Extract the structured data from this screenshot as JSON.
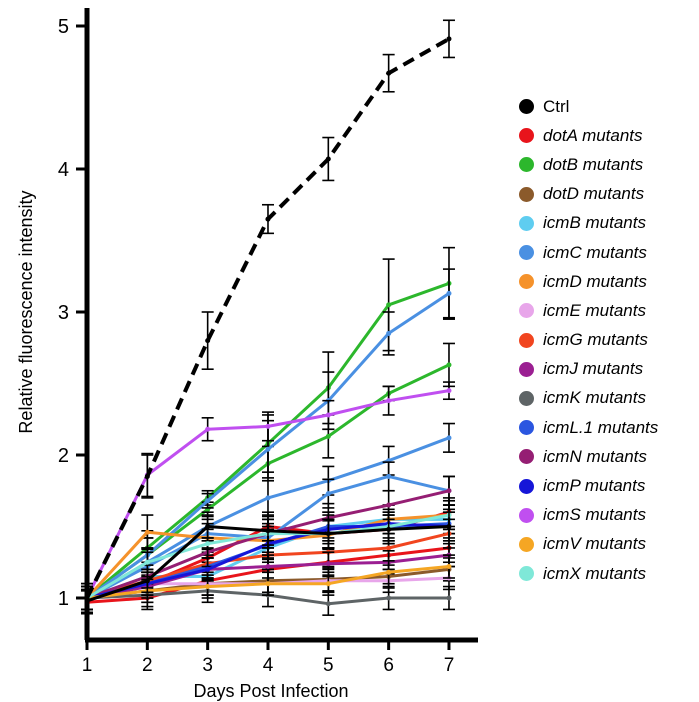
{
  "chart_data": {
    "type": "line",
    "xlabel": "Days Post Infection",
    "ylabel": "Relative fluorescence intensity",
    "x": [
      1,
      2,
      3,
      4,
      5,
      6,
      7
    ],
    "x_ticks": [
      "1",
      "2",
      "3",
      "4",
      "5",
      "6",
      "7"
    ],
    "y_ticks": [
      "1",
      "2",
      "3",
      "4",
      "5"
    ],
    "xlim": [
      1,
      7
    ],
    "ylim": [
      0.65,
      5.3
    ],
    "grid": false,
    "legend_position": "right",
    "series": [
      {
        "name": "Ctrl",
        "color": "#000000",
        "dashed": true,
        "values": [
          1.0,
          1.85,
          2.8,
          3.65,
          4.07,
          4.67,
          4.91
        ],
        "errors": [
          0.1,
          0.15,
          0.2,
          0.1,
          0.15,
          0.13,
          0.13
        ]
      },
      {
        "color": "#000000",
        "values": [
          0.98,
          1.12,
          1.5,
          1.47,
          1.45,
          1.48,
          1.5
        ],
        "errors": [
          0.08,
          0.08,
          0.08,
          0.1,
          0.1,
          0.1,
          0.1
        ]
      },
      {
        "name": "dotA mutants",
        "color": "#e8141b",
        "values": [
          1.0,
          1.1,
          1.28,
          1.5,
          1.45,
          1.48,
          1.6
        ],
        "errors": [
          0.08,
          0.1,
          0.12,
          0.1,
          0.1,
          0.1,
          0.1
        ]
      },
      {
        "color": "#e8141b",
        "values": [
          0.97,
          1.0,
          1.12,
          1.2,
          1.25,
          1.3,
          1.35
        ],
        "errors": [
          0.08,
          0.08,
          0.1,
          0.1,
          0.1,
          0.1,
          0.1
        ]
      },
      {
        "name": "dotB  mutants",
        "color": "#2cb72c",
        "values": [
          1.0,
          1.35,
          1.7,
          2.08,
          2.47,
          3.05,
          3.2
        ],
        "errors": [
          0.1,
          0.12,
          0.05,
          0.2,
          0.25,
          0.32,
          0.25
        ]
      },
      {
        "color": "#2cb72c",
        "values": [
          1.0,
          1.3,
          1.62,
          1.94,
          2.13,
          2.43,
          2.63
        ],
        "errors": [
          0.1,
          0.12,
          0.05,
          0.12,
          0.15,
          0.05,
          0.15
        ]
      },
      {
        "name": "dotD mutants",
        "color": "#8b5a2b",
        "values": [
          1.0,
          1.05,
          1.1,
          1.12,
          1.13,
          1.15,
          1.2
        ],
        "errors": [
          0.08,
          0.08,
          0.08,
          0.08,
          0.08,
          0.08,
          0.08
        ]
      },
      {
        "name": "icmB mutants",
        "color": "#5fcdf0",
        "values": [
          1.0,
          1.15,
          1.15,
          1.35,
          1.5,
          1.55,
          1.55
        ],
        "errors": [
          0.08,
          0.1,
          0.1,
          0.1,
          0.1,
          0.1,
          0.1
        ]
      },
      {
        "name": "icmC mutants",
        "color": "#4a90e2",
        "values": [
          1.0,
          1.3,
          1.68,
          2.04,
          2.38,
          2.85,
          3.13
        ],
        "errors": [
          0.1,
          0.12,
          0.05,
          0.2,
          0.2,
          0.15,
          0.17
        ]
      },
      {
        "color": "#4a90e2",
        "values": [
          1.0,
          1.25,
          1.5,
          1.7,
          1.82,
          1.96,
          2.12
        ],
        "errors": [
          0.08,
          0.1,
          0.1,
          0.12,
          0.1,
          0.1,
          0.1
        ]
      },
      {
        "color": "#4a90e2",
        "values": [
          1.0,
          1.22,
          1.45,
          1.42,
          1.73,
          1.85,
          1.75
        ],
        "errors": [
          0.08,
          0.1,
          0.1,
          0.1,
          0.1,
          0.1,
          0.1
        ]
      },
      {
        "name": "icmD mutants",
        "color": "#f5922b",
        "values": [
          1.0,
          1.46,
          1.42,
          1.4,
          1.44,
          1.55,
          1.58
        ],
        "errors": [
          0.08,
          0.12,
          0.1,
          0.1,
          0.1,
          0.1,
          0.1
        ]
      },
      {
        "name": "icmE mutants",
        "color": "#e8a6ea",
        "values": [
          1.0,
          1.1,
          1.1,
          1.1,
          1.12,
          1.12,
          1.14
        ],
        "errors": [
          0.08,
          0.08,
          0.08,
          0.08,
          0.08,
          0.08,
          0.08
        ]
      },
      {
        "name": "icmG mutants",
        "color": "#f1451f",
        "values": [
          1.0,
          1.12,
          1.24,
          1.3,
          1.32,
          1.35,
          1.45
        ],
        "errors": [
          0.08,
          0.08,
          0.1,
          0.1,
          0.1,
          0.1,
          0.1
        ]
      },
      {
        "name": "icmJ mutants",
        "color": "#9b1f92",
        "values": [
          1.0,
          1.08,
          1.2,
          1.22,
          1.24,
          1.25,
          1.3
        ],
        "errors": [
          0.08,
          0.08,
          0.08,
          0.08,
          0.08,
          0.08,
          0.08
        ]
      },
      {
        "name": "icmK mutants",
        "color": "#5e6466",
        "values": [
          1.0,
          1.02,
          1.05,
          1.02,
          0.96,
          1.0,
          1.0
        ],
        "errors": [
          0.08,
          0.08,
          0.08,
          0.08,
          0.08,
          0.08,
          0.08
        ]
      },
      {
        "name": "icmL.1 mutants",
        "color": "#2b56e0",
        "values": [
          1.0,
          1.1,
          1.22,
          1.37,
          1.5,
          1.5,
          1.52
        ],
        "errors": [
          0.08,
          0.08,
          0.08,
          0.1,
          0.1,
          0.1,
          0.1
        ]
      },
      {
        "name": "icmN mutants",
        "color": "#951e73",
        "values": [
          1.0,
          1.15,
          1.32,
          1.45,
          1.56,
          1.65,
          1.75
        ],
        "errors": [
          0.08,
          0.08,
          0.1,
          0.1,
          0.1,
          0.1,
          0.1
        ]
      },
      {
        "name": "icmP mutants",
        "color": "#1616d8",
        "values": [
          1.0,
          1.1,
          1.2,
          1.38,
          1.48,
          1.52,
          1.5
        ],
        "errors": [
          0.08,
          0.08,
          0.08,
          0.1,
          0.1,
          0.1,
          0.1
        ]
      },
      {
        "name": "icmS mutants",
        "color": "#c04ff0",
        "values": [
          1.0,
          1.86,
          2.18,
          2.2,
          2.28,
          2.38,
          2.45
        ],
        "errors": [
          0.08,
          0.15,
          0.08,
          0.1,
          0.1,
          0.1,
          0.06
        ]
      },
      {
        "name": "icmV mutants",
        "color": "#f5a623",
        "values": [
          1.0,
          1.05,
          1.08,
          1.1,
          1.1,
          1.18,
          1.22
        ],
        "errors": [
          0.08,
          0.08,
          0.08,
          0.08,
          0.08,
          0.08,
          0.08
        ]
      },
      {
        "name": "icmX mutants",
        "color": "#7fe8d8",
        "values": [
          1.0,
          1.25,
          1.38,
          1.45,
          1.45,
          1.5,
          1.58
        ],
        "errors": [
          0.08,
          0.1,
          0.1,
          0.1,
          0.1,
          0.1,
          0.1
        ]
      }
    ]
  },
  "legend": [
    {
      "label": "Ctrl",
      "color": "#000000",
      "italic": false
    },
    {
      "label": "dotA mutants",
      "color": "#e8141b",
      "italic": true
    },
    {
      "label": "dotB  mutants",
      "color": "#2cb72c",
      "italic": true
    },
    {
      "label": "dotD mutants",
      "color": "#8b5a2b",
      "italic": true
    },
    {
      "label": "icmB mutants",
      "color": "#5fcdf0",
      "italic": true
    },
    {
      "label": "icmC mutants",
      "color": "#4a90e2",
      "italic": true
    },
    {
      "label": "icmD mutants",
      "color": "#f5922b",
      "italic": true
    },
    {
      "label": "icmE mutants",
      "color": "#e8a6ea",
      "italic": true
    },
    {
      "label": "icmG mutants",
      "color": "#f1451f",
      "italic": true
    },
    {
      "label": "icmJ mutants",
      "color": "#9b1f92",
      "italic": true
    },
    {
      "label": "icmK mutants",
      "color": "#5e6466",
      "italic": true
    },
    {
      "label": "icmL.1 mutants",
      "color": "#2b56e0",
      "italic": true
    },
    {
      "label": "icmN mutants",
      "color": "#951e73",
      "italic": true
    },
    {
      "label": "icmP mutants",
      "color": "#1616d8",
      "italic": true
    },
    {
      "label": "icmS mutants",
      "color": "#c04ff0",
      "italic": true
    },
    {
      "label": "icmV mutants",
      "color": "#f5a623",
      "italic": true
    },
    {
      "label": "icmX mutants",
      "color": "#7fe8d8",
      "italic": true
    }
  ]
}
